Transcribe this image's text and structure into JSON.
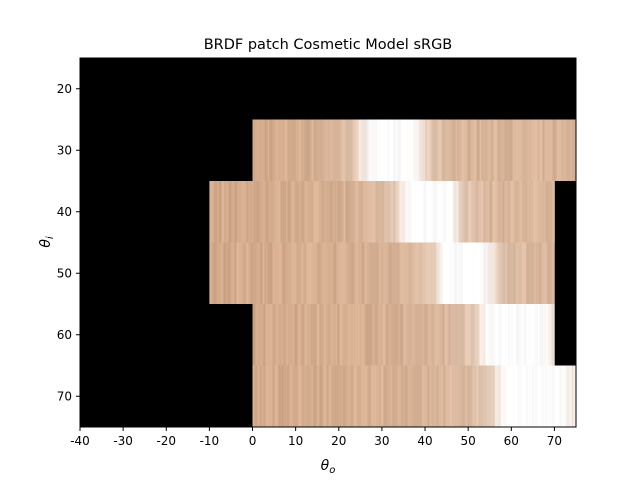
{
  "chart_data": {
    "type": "heatmap",
    "title": "BRDF patch Cosmetic Model sRGB",
    "xlabel": "θ",
    "xlabel_sub": "o",
    "ylabel": "θ",
    "ylabel_sub": "i",
    "xlim": [
      -40,
      75
    ],
    "ylim": [
      75,
      15
    ],
    "x_ticks": [
      -40,
      -30,
      -20,
      -10,
      0,
      10,
      20,
      30,
      40,
      50,
      60,
      70
    ],
    "x_tick_labels": [
      "-40",
      "-30",
      "-20",
      "-10",
      "0",
      "10",
      "20",
      "30",
      "40",
      "50",
      "60",
      "70"
    ],
    "y_ticks": [
      20,
      30,
      40,
      50,
      60,
      70
    ],
    "y_tick_labels": [
      "20",
      "30",
      "40",
      "50",
      "60",
      "70"
    ],
    "background_color": "#000000",
    "rows": [
      {
        "theta_i": 30,
        "y_range": [
          25,
          35
        ],
        "x_range": [
          0,
          75
        ],
        "peak_range": [
          24.5,
          40
        ]
      },
      {
        "theta_i": 40,
        "y_range": [
          35,
          45
        ],
        "x_range": [
          -10,
          70
        ],
        "peak_range": [
          34,
          48
        ]
      },
      {
        "theta_i": 50,
        "y_range": [
          45,
          55
        ],
        "x_range": [
          -10,
          70
        ],
        "peak_range": [
          42.5,
          56
        ]
      },
      {
        "theta_i": 60,
        "y_range": [
          55,
          65
        ],
        "x_range": [
          0,
          70
        ],
        "peak_range": [
          52.5,
          70
        ]
      },
      {
        "theta_i": 70,
        "y_range": [
          65,
          75
        ],
        "x_range": [
          0,
          75
        ],
        "peak_range": [
          56,
          75
        ]
      }
    ],
    "colors": {
      "base": "#d4ab8c",
      "highlight": "#ffffff"
    }
  }
}
